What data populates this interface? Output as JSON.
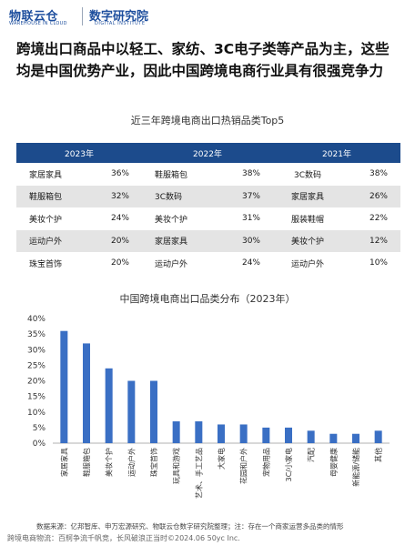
{
  "logo": {
    "brand1": "物联云仓",
    "brand1_sub": "WAREHOUSE IN CLOUD",
    "brand2": "数字研究院",
    "brand2_sub": "DIGITAL INSTITUTE"
  },
  "headline": "跨境出口商品中以轻工、家纺、3C电子类等产品为主，这些均是中国优势产业，因此中国跨境电商行业具有很强竞争力",
  "table": {
    "title": "近三年跨境电商出口热销品类Top5",
    "headers": [
      "2023年",
      "2022年",
      "2021年"
    ],
    "rows": [
      [
        "家居家具",
        "36%",
        "鞋服箱包",
        "38%",
        "3C数码",
        "38%"
      ],
      [
        "鞋服箱包",
        "32%",
        "3C数码",
        "37%",
        "家居家具",
        "26%"
      ],
      [
        "美妆个护",
        "24%",
        "美妆个护",
        "31%",
        "服装鞋帽",
        "22%"
      ],
      [
        "运动户外",
        "20%",
        "家居家具",
        "30%",
        "美妆个护",
        "12%"
      ],
      [
        "珠宝首饰",
        "20%",
        "运动户外",
        "24%",
        "运动户外",
        "10%"
      ]
    ]
  },
  "chart_data": {
    "type": "bar",
    "title": "中国跨境电商出口品类分布（2023年）",
    "categories": [
      "家居家具",
      "鞋服箱包",
      "美妆个护",
      "运动户外",
      "珠宝首饰",
      "玩具和游戏",
      "艺术、手工艺品",
      "大家电",
      "花园和户外",
      "宠物用品",
      "3C/小家电",
      "汽配",
      "母婴健康",
      "新能源/储能",
      "其他"
    ],
    "values": [
      36,
      32,
      24,
      20,
      20,
      7,
      7,
      6,
      6,
      5,
      5,
      4,
      3,
      3,
      4
    ],
    "yticks": [
      "0%",
      "5%",
      "10%",
      "15%",
      "20%",
      "25%",
      "30%",
      "35%",
      "40%"
    ],
    "ylim": [
      0,
      40
    ],
    "color": "#3a6fc4"
  },
  "footer": {
    "source": "数据来源：亿邦智库、申万宏源研究、物联云仓数字研究院整理；注：存在一个商家运营多品类的情形",
    "credit": "跨境电商物流：百舸争流千帆竞，长风破浪正当时©2024.06 50yc Inc."
  }
}
